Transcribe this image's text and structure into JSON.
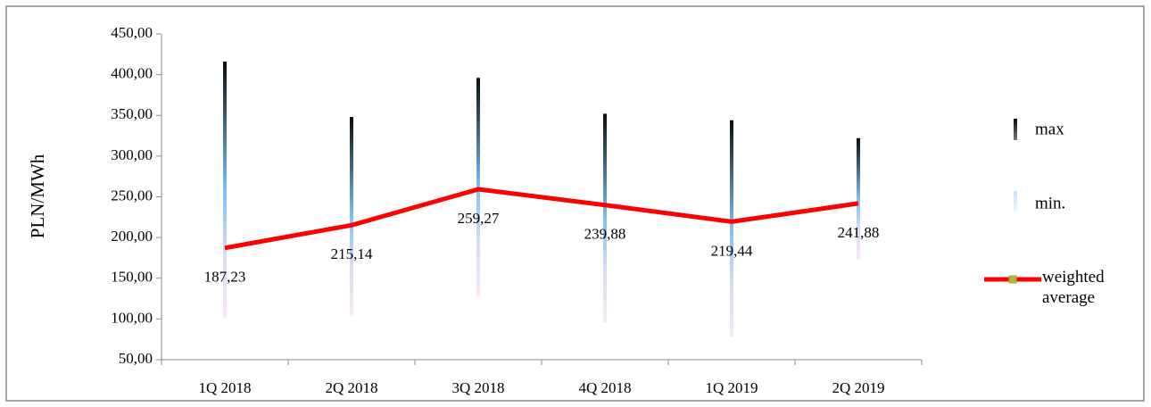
{
  "chart_data": {
    "type": "line",
    "y_label": "PLN/MWh",
    "categories": [
      "1Q 2018",
      "2Q 2018",
      "3Q 2018",
      "4Q 2018",
      "1Q 2019",
      "2Q 2019"
    ],
    "ylim": [
      50,
      450
    ],
    "yticks": [
      {
        "value": 50,
        "label": "50,00"
      },
      {
        "value": 100,
        "label": "100,00"
      },
      {
        "value": 150,
        "label": "150,00"
      },
      {
        "value": 200,
        "label": "200,00"
      },
      {
        "value": 250,
        "label": "250,00"
      },
      {
        "value": 300,
        "label": "300,00"
      },
      {
        "value": 350,
        "label": "350,00"
      },
      {
        "value": 400,
        "label": "400,00"
      },
      {
        "value": 450,
        "label": "450,00"
      }
    ],
    "series": [
      {
        "name": "max",
        "values": [
          416,
          348,
          396,
          352,
          344,
          322
        ]
      },
      {
        "name": "min.",
        "values": [
          101,
          104,
          127,
          96,
          78,
          173
        ]
      },
      {
        "name": "weighted average",
        "color": "#ff0000",
        "values": [
          187.23,
          215.14,
          259.27,
          239.88,
          219.44,
          241.88
        ],
        "value_labels": [
          "187,23",
          "215,14",
          "259,27",
          "239,88",
          "219,44",
          "241,88"
        ]
      }
    ],
    "legend": "right"
  }
}
